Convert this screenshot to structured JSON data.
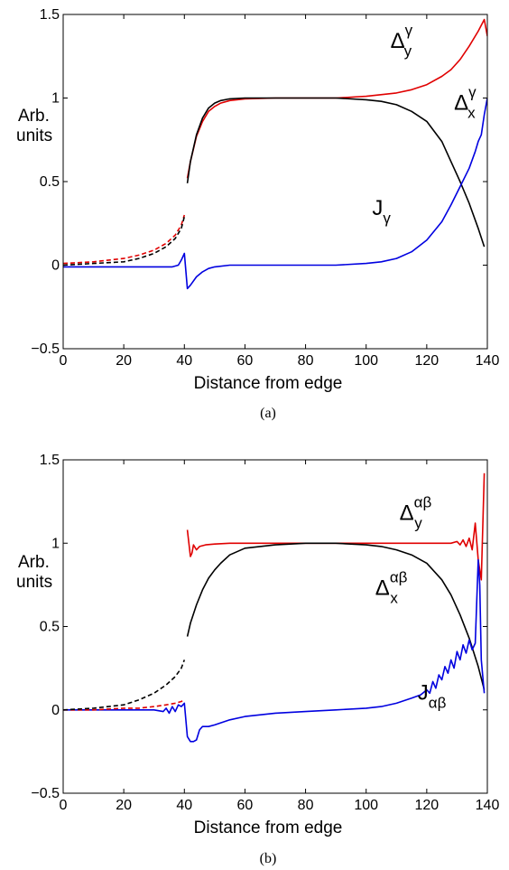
{
  "chart_data": [
    {
      "type": "line",
      "panel_label": "(a)",
      "xlabel": "Distance from edge",
      "ylabel_line1": "Arb.",
      "ylabel_line2": "units",
      "xlim": [
        0,
        140
      ],
      "ylim": [
        -0.5,
        1.5
      ],
      "xticks": [
        "0",
        "20",
        "40",
        "60",
        "80",
        "100",
        "120",
        "140"
      ],
      "yticks": [
        "−0.5",
        "0",
        "0.5",
        "1",
        "1.5"
      ],
      "xtick_values": [
        0,
        20,
        40,
        60,
        80,
        100,
        120,
        140
      ],
      "ytick_values": [
        -0.5,
        0,
        0.5,
        1,
        1.5
      ],
      "annotations": [
        {
          "base": "Δ",
          "sup": "γ",
          "sub": "y",
          "x": 108,
          "y": 1.3
        },
        {
          "base": "Δ",
          "sup": "γ",
          "sub": "x",
          "x": 129,
          "y": 0.93
        },
        {
          "base": "J",
          "sup": "",
          "sub": "γ",
          "x": 102,
          "y": 0.3
        }
      ],
      "series": [
        {
          "color": "#e00000",
          "dash": false,
          "x": [
            41,
            42,
            44,
            46,
            48,
            50,
            52,
            55,
            60,
            70,
            80,
            90,
            100,
            110,
            115,
            120,
            125,
            128,
            131,
            134,
            137,
            139,
            140
          ],
          "y": [
            0.52,
            0.62,
            0.77,
            0.86,
            0.92,
            0.95,
            0.97,
            0.985,
            0.995,
            1.0,
            1.0,
            1.0,
            1.01,
            1.03,
            1.05,
            1.08,
            1.13,
            1.17,
            1.23,
            1.31,
            1.4,
            1.47,
            1.37
          ]
        },
        {
          "color": "#000000",
          "dash": false,
          "x": [
            41,
            42,
            44,
            46,
            48,
            50,
            52,
            55,
            60,
            70,
            80,
            90,
            100,
            105,
            110,
            115,
            120,
            125,
            128,
            131,
            134,
            137,
            139
          ],
          "y": [
            0.49,
            0.62,
            0.78,
            0.88,
            0.94,
            0.97,
            0.985,
            0.995,
            1.0,
            1.0,
            1.0,
            1.0,
            0.99,
            0.98,
            0.96,
            0.92,
            0.86,
            0.74,
            0.62,
            0.5,
            0.37,
            0.22,
            0.11
          ]
        },
        {
          "color": "#0000e0",
          "dash": false,
          "x": [
            0,
            10,
            20,
            30,
            36,
            38,
            39,
            40,
            41,
            42,
            44,
            46,
            48,
            50,
            55,
            60,
            70,
            80,
            90,
            100,
            105,
            110,
            115,
            120,
            125,
            128,
            131,
            134,
            136,
            137,
            138,
            139,
            140
          ],
          "y": [
            -0.01,
            -0.01,
            -0.01,
            -0.01,
            -0.01,
            0.0,
            0.03,
            0.07,
            -0.14,
            -0.12,
            -0.07,
            -0.04,
            -0.02,
            -0.01,
            0.0,
            0.0,
            0.0,
            0.0,
            0.0,
            0.01,
            0.02,
            0.04,
            0.08,
            0.15,
            0.26,
            0.36,
            0.47,
            0.58,
            0.68,
            0.74,
            0.78,
            0.9,
            1.0
          ]
        },
        {
          "color": "#e00000",
          "dash": true,
          "x": [
            0,
            10,
            20,
            25,
            30,
            34,
            37,
            39,
            40
          ],
          "y": [
            0.01,
            0.02,
            0.04,
            0.06,
            0.09,
            0.13,
            0.18,
            0.24,
            0.3
          ]
        },
        {
          "color": "#000000",
          "dash": true,
          "x": [
            0,
            10,
            20,
            25,
            30,
            34,
            37,
            39,
            40
          ],
          "y": [
            0.0,
            0.01,
            0.02,
            0.04,
            0.07,
            0.11,
            0.16,
            0.22,
            0.29
          ]
        }
      ]
    },
    {
      "type": "line",
      "panel_label": "(b)",
      "xlabel": "Distance from edge",
      "ylabel_line1": "Arb.",
      "ylabel_line2": "units",
      "xlim": [
        0,
        140
      ],
      "ylim": [
        -0.5,
        1.5
      ],
      "xticks": [
        "0",
        "20",
        "40",
        "60",
        "80",
        "100",
        "120",
        "140"
      ],
      "yticks": [
        "−0.5",
        "0",
        "0.5",
        "1",
        "1.5"
      ],
      "xtick_values": [
        0,
        20,
        40,
        60,
        80,
        100,
        120,
        140
      ],
      "ytick_values": [
        -0.5,
        0,
        0.5,
        1,
        1.5
      ],
      "annotations": [
        {
          "base": "Δ",
          "sup": "αβ",
          "sub": "y",
          "x": 111,
          "y": 1.14
        },
        {
          "base": "Δ",
          "sup": "αβ",
          "sub": "x",
          "x": 103,
          "y": 0.69
        },
        {
          "base": "J",
          "sup": "",
          "sub": "αβ",
          "x": 117,
          "y": 0.06
        }
      ],
      "series": [
        {
          "color": "#e00000",
          "dash": false,
          "x": [
            41,
            41.5,
            42,
            42.5,
            43,
            44,
            45,
            47,
            50,
            55,
            60,
            80,
            100,
            120,
            125,
            128,
            130,
            131,
            132,
            133,
            134,
            135,
            136,
            137,
            138,
            139
          ],
          "y": [
            1.08,
            1.0,
            0.92,
            0.94,
            0.99,
            0.96,
            0.98,
            0.99,
            0.995,
            1.0,
            1.0,
            1.0,
            1.0,
            1.0,
            1.0,
            1.0,
            1.01,
            0.99,
            1.02,
            0.98,
            1.03,
            0.96,
            1.12,
            0.9,
            0.78,
            1.42
          ]
        },
        {
          "color": "#000000",
          "dash": false,
          "x": [
            41,
            42,
            44,
            46,
            48,
            50,
            52,
            55,
            60,
            70,
            80,
            90,
            100,
            105,
            110,
            115,
            120,
            125,
            128,
            131,
            134,
            137,
            139
          ],
          "y": [
            0.44,
            0.52,
            0.63,
            0.72,
            0.79,
            0.84,
            0.88,
            0.93,
            0.97,
            0.99,
            1.0,
            1.0,
            0.99,
            0.98,
            0.96,
            0.93,
            0.88,
            0.78,
            0.69,
            0.57,
            0.43,
            0.26,
            0.12
          ]
        },
        {
          "color": "#0000e0",
          "dash": false,
          "x": [
            0,
            10,
            20,
            30,
            33,
            34,
            35,
            36,
            37,
            38,
            39,
            40,
            41,
            42,
            43,
            44,
            45,
            46,
            48,
            50,
            55,
            60,
            70,
            80,
            90,
            100,
            105,
            110,
            115,
            118,
            120,
            121,
            122,
            123,
            124,
            125,
            126,
            127,
            128,
            129,
            130,
            131,
            132,
            133,
            134,
            135,
            136,
            137,
            137.5,
            138,
            139
          ],
          "y": [
            0.0,
            0.0,
            0.0,
            0.0,
            -0.01,
            0.01,
            -0.02,
            0.02,
            -0.01,
            0.03,
            0.02,
            0.04,
            -0.16,
            -0.19,
            -0.19,
            -0.18,
            -0.12,
            -0.1,
            -0.1,
            -0.09,
            -0.06,
            -0.04,
            -0.02,
            -0.01,
            0.0,
            0.01,
            0.02,
            0.04,
            0.07,
            0.09,
            0.12,
            0.1,
            0.17,
            0.13,
            0.21,
            0.18,
            0.26,
            0.22,
            0.3,
            0.25,
            0.35,
            0.3,
            0.39,
            0.34,
            0.42,
            0.36,
            0.4,
            0.9,
            0.75,
            0.3,
            0.1
          ]
        },
        {
          "color": "#e00000",
          "dash": true,
          "x": [
            0,
            10,
            20,
            25,
            30,
            34,
            37,
            39,
            40
          ],
          "y": [
            0.0,
            0.0,
            0.01,
            0.01,
            0.02,
            0.03,
            0.04,
            0.05,
            0.06
          ]
        },
        {
          "color": "#000000",
          "dash": true,
          "x": [
            0,
            10,
            20,
            25,
            30,
            34,
            37,
            39,
            40
          ],
          "y": [
            0.0,
            0.01,
            0.03,
            0.06,
            0.1,
            0.15,
            0.2,
            0.25,
            0.3
          ]
        }
      ]
    }
  ]
}
